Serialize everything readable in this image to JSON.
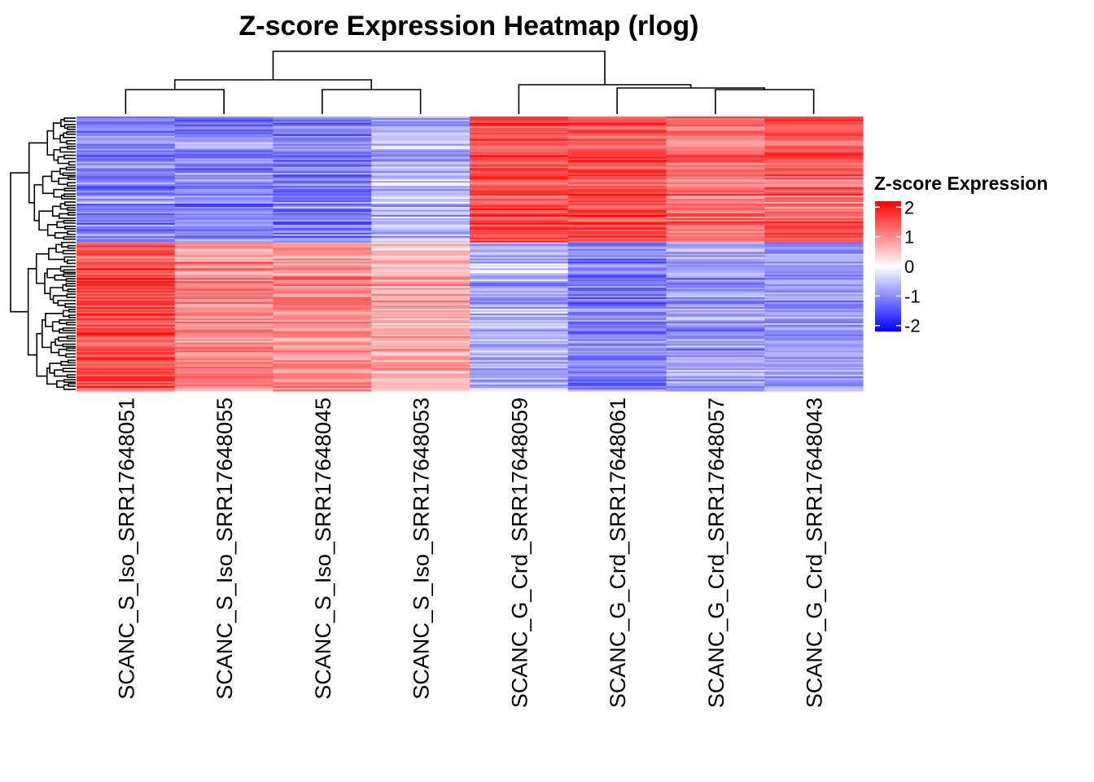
{
  "chart_data": {
    "type": "heatmap",
    "title": "Z-score Expression Heatmap (rlog)",
    "columns": [
      "SCANC_S_Iso_SRR17648051",
      "SCANC_S_Iso_SRR17648055",
      "SCANC_S_Iso_SRR17648045",
      "SCANC_S_Iso_SRR17648053",
      "SCANC_G_Crd_SRR17648059",
      "SCANC_G_Crd_SRR17648061",
      "SCANC_G_Crd_SRR17648057",
      "SCANC_G_Crd_SRR17648043"
    ],
    "legend": {
      "title": "Z-score Expression",
      "ticks": [
        2,
        1,
        0,
        -1,
        -2
      ],
      "range": [
        -2.2,
        2.2
      ],
      "colors": {
        "low": "#0000FF",
        "mid": "#FFFFFF",
        "high": "#FF0000"
      }
    },
    "row_blocks_mean_zscore": {
      "description": "approximate mean z-score per column for the two main gene clusters (top ~45% of rows, bottom ~55%)",
      "upper_cluster": [
        -1.0,
        -1.0,
        -1.1,
        -0.6,
        1.5,
        1.5,
        1.2,
        1.3
      ],
      "lower_cluster": [
        1.6,
        1.1,
        1.0,
        0.7,
        -0.7,
        -1.1,
        -0.9,
        -0.9
      ]
    },
    "column_dendrogram": "((051,055),(045,053)),(059,(061,(057,043)))",
    "row_dendrogram": "two main clusters"
  }
}
